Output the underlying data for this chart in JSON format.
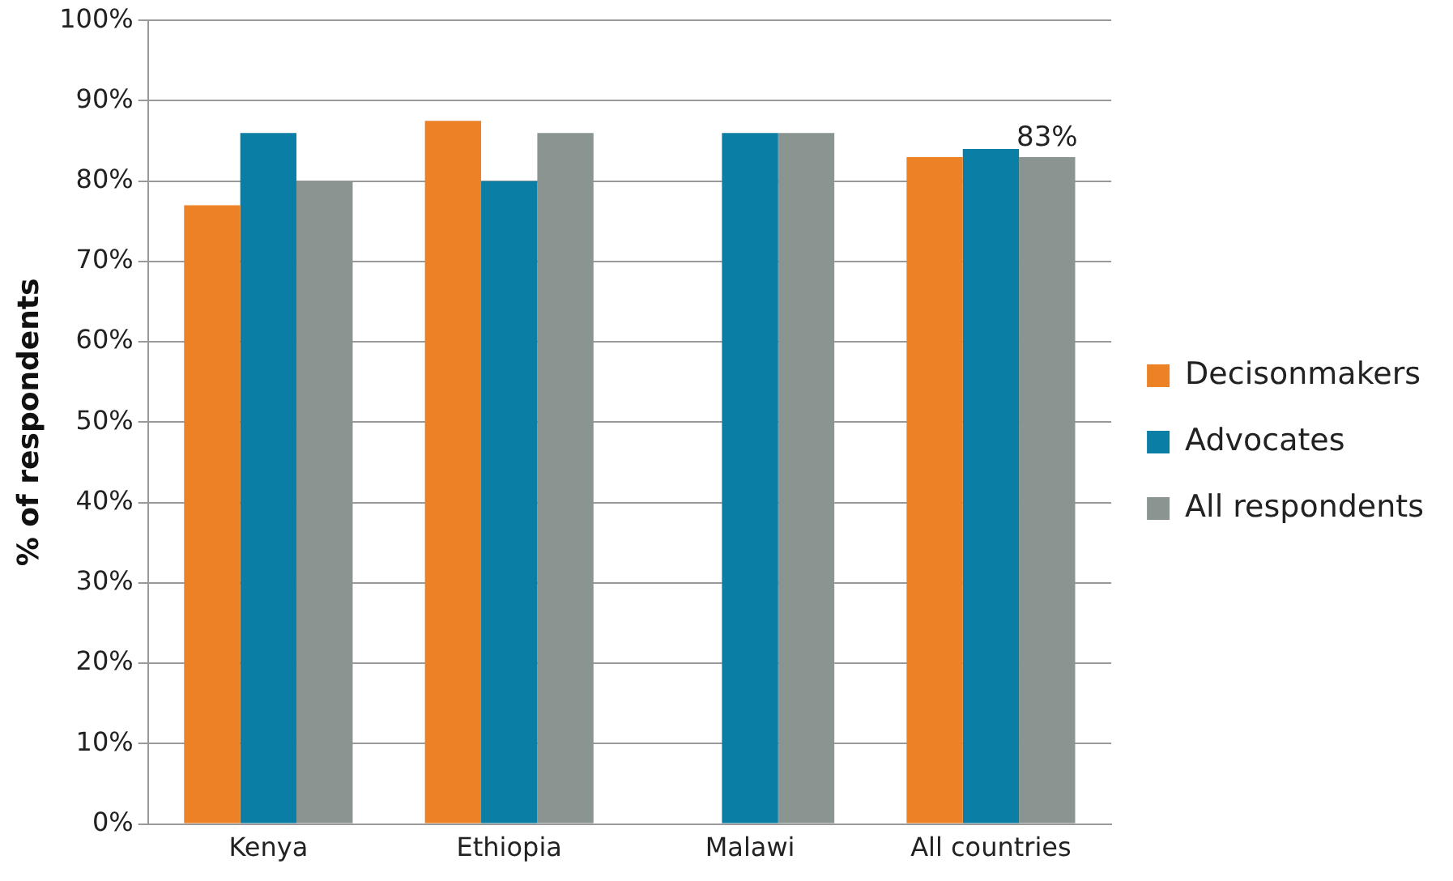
{
  "chart_data": {
    "type": "bar",
    "ylabel": "% of respondents",
    "categories": [
      "Kenya",
      "Ethiopia",
      "Malawi",
      "All countries"
    ],
    "series": [
      {
        "name": "Decisonmakers",
        "color": "#ed8125",
        "values": [
          77,
          87.5,
          null,
          83
        ]
      },
      {
        "name": "Advocates",
        "color": "#0b7ea5",
        "values": [
          86,
          80,
          86,
          84
        ]
      },
      {
        "name": "All respondents",
        "color": "#8a9490",
        "values": [
          80,
          86,
          86,
          83
        ],
        "value_labels": [
          null,
          null,
          null,
          "83%"
        ]
      }
    ],
    "ylim": [
      0,
      100
    ],
    "yticks": [
      {
        "value": 0,
        "label": "0%"
      },
      {
        "value": 10,
        "label": "10%"
      },
      {
        "value": 20,
        "label": "20%"
      },
      {
        "value": 30,
        "label": "30%"
      },
      {
        "value": 40,
        "label": "40%"
      },
      {
        "value": 50,
        "label": "50%"
      },
      {
        "value": 60,
        "label": "60%"
      },
      {
        "value": 70,
        "label": "70%"
      },
      {
        "value": 80,
        "label": "80%"
      },
      {
        "value": 90,
        "label": "90%"
      },
      {
        "value": 100,
        "label": "100%"
      }
    ],
    "grid": "y",
    "legend": "right"
  }
}
